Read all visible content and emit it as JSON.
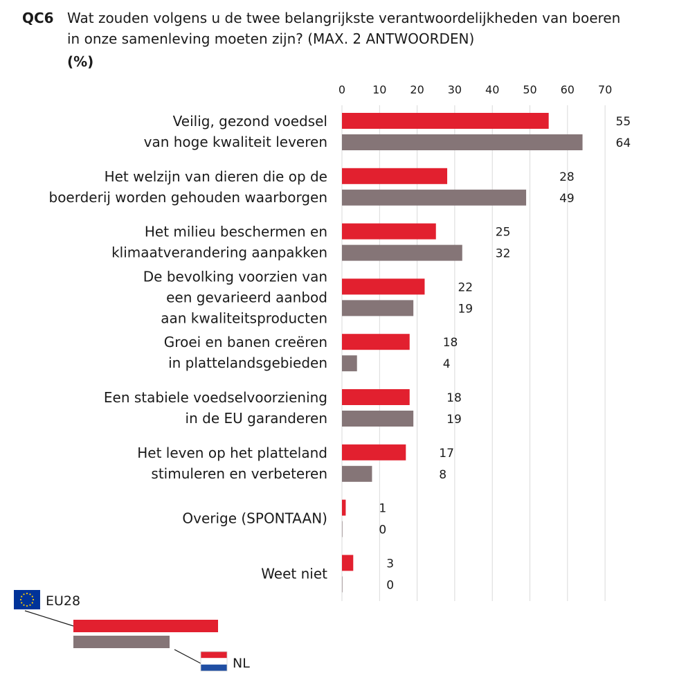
{
  "chart_data": {
    "type": "bar",
    "orientation": "horizontal",
    "question_code": "QC6",
    "title_lines": [
      "Wat zouden volgens u de twee belangrijkste verantwoordelijkheden van boeren",
      "in onze samenleving moeten zijn? (MAX. 2 ANTWOORDEN)"
    ],
    "unit": "(%)",
    "xlim": [
      0,
      70
    ],
    "ticks": [
      "0",
      "10",
      "20",
      "30",
      "40",
      "50",
      "60",
      "70"
    ],
    "grid": true,
    "legend_position": "bottom-left",
    "categories": [
      [
        "Veilig, gezond voedsel",
        "van hoge kwaliteit leveren"
      ],
      [
        "Het welzijn van dieren die op de",
        "boerderij worden gehouden waarborgen"
      ],
      [
        "Het milieu beschermen en",
        "klimaatverandering aanpakken"
      ],
      [
        "De bevolking voorzien van",
        "een gevarieerd aanbod",
        "aan kwaliteitsproducten"
      ],
      [
        "Groei en banen creëren",
        "in plattelandsgebieden"
      ],
      [
        "Een stabiele voedselvoorziening",
        "in de EU garanderen"
      ],
      [
        "Het leven op het platteland",
        "stimuleren en verbeteren"
      ],
      [
        "Overige (SPONTAAN)"
      ],
      [
        "Weet niet"
      ]
    ],
    "series": [
      {
        "name": "EU28",
        "color": "#e2202f",
        "values": [
          55,
          28,
          25,
          22,
          18,
          18,
          17,
          1,
          3
        ]
      },
      {
        "name": "NL",
        "color": "#857577",
        "values": [
          64,
          49,
          32,
          19,
          4,
          19,
          8,
          0,
          0
        ]
      }
    ]
  }
}
